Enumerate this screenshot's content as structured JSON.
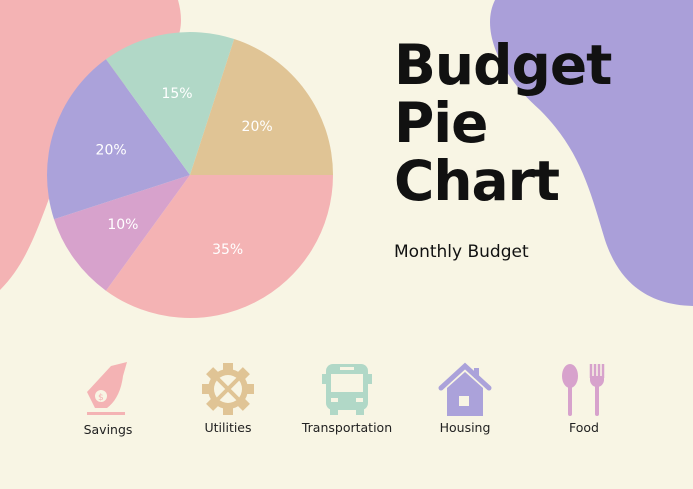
{
  "title_lines": [
    "Budget",
    "Pie",
    "Chart"
  ],
  "subtitle": "Monthly Budget",
  "chart_data": {
    "type": "pie",
    "title": "Budget Pie Chart",
    "subtitle": "Monthly Budget",
    "categories": [
      "Savings",
      "Food",
      "Housing",
      "Transportation",
      "Utilities"
    ],
    "values": [
      35,
      10,
      20,
      15,
      20
    ],
    "labels": [
      "35%",
      "10%",
      "20%",
      "15%",
      "20%"
    ],
    "colors": [
      "#f4b3b4",
      "#d7a2cc",
      "#aba2da",
      "#b1d8c7",
      "#e0c495"
    ],
    "start": "east, clockwise"
  },
  "legend": [
    {
      "label": "Savings",
      "icon": "money-hand-icon",
      "color": "#f4b3b4"
    },
    {
      "label": "Utilities",
      "icon": "gear-tools-icon",
      "color": "#e0c495"
    },
    {
      "label": "Transportation",
      "icon": "bus-icon",
      "color": "#b1d8c7"
    },
    {
      "label": "Housing",
      "icon": "house-icon",
      "color": "#aba2da"
    },
    {
      "label": "Food",
      "icon": "spoon-fork-icon",
      "color": "#d7a2cc"
    }
  ],
  "colors": {
    "background": "#f8f5e4",
    "blob_left": "#f4b3b4",
    "blob_right": "#aa9fd9"
  }
}
